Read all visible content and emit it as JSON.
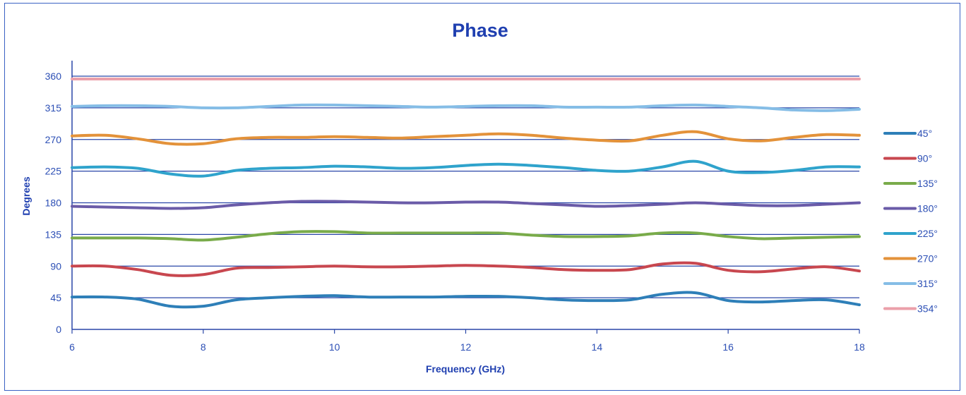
{
  "chart_data": {
    "type": "line",
    "title": "Phase",
    "xlabel": "Frequency (GHz)",
    "ylabel": "Degrees",
    "xlim": [
      6,
      18
    ],
    "ylim": [
      0,
      360
    ],
    "xticks": [
      6,
      8,
      10,
      12,
      14,
      16,
      18
    ],
    "yticks": [
      0,
      45,
      90,
      135,
      180,
      225,
      270,
      315,
      360
    ],
    "grid": "horizontal",
    "legend_position": "right",
    "x": [
      6,
      6.5,
      7,
      7.5,
      8,
      8.5,
      9,
      9.5,
      10,
      10.5,
      11,
      11.5,
      12,
      12.5,
      13,
      13.5,
      14,
      14.5,
      15,
      15.5,
      16,
      16.5,
      17,
      17.5,
      18
    ],
    "series": [
      {
        "name": "45°",
        "color": "#2e7fb8",
        "values": [
          46,
          46,
          43,
          33,
          33,
          42,
          45,
          47,
          48,
          46,
          46,
          46,
          47,
          47,
          45,
          42,
          41,
          42,
          50,
          52,
          41,
          39,
          41,
          42,
          35
        ]
      },
      {
        "name": "90°",
        "color": "#c8474f",
        "values": [
          90,
          90,
          85,
          77,
          78,
          87,
          88,
          89,
          90,
          89,
          89,
          90,
          91,
          90,
          88,
          85,
          84,
          85,
          93,
          94,
          84,
          82,
          86,
          89,
          83
        ]
      },
      {
        "name": "135°",
        "color": "#79ab4a",
        "values": [
          130,
          130,
          130,
          129,
          127,
          131,
          136,
          139,
          139,
          137,
          137,
          137,
          137,
          137,
          134,
          132,
          132,
          133,
          137,
          137,
          132,
          129,
          130,
          131,
          132
        ]
      },
      {
        "name": "180°",
        "color": "#6a5ba8",
        "values": [
          175,
          174,
          173,
          172,
          173,
          177,
          180,
          182,
          182,
          181,
          180,
          180,
          181,
          181,
          179,
          177,
          175,
          176,
          178,
          180,
          178,
          176,
          176,
          178,
          180
        ]
      },
      {
        "name": "225°",
        "color": "#2fa3cc",
        "values": [
          230,
          231,
          229,
          221,
          218,
          226,
          229,
          230,
          232,
          231,
          229,
          230,
          233,
          235,
          233,
          230,
          226,
          225,
          231,
          239,
          225,
          223,
          226,
          231,
          231
        ]
      },
      {
        "name": "270°",
        "color": "#e3923a",
        "values": [
          275,
          276,
          271,
          264,
          264,
          271,
          273,
          273,
          274,
          273,
          272,
          274,
          276,
          278,
          276,
          272,
          269,
          268,
          276,
          281,
          271,
          268,
          273,
          277,
          276
        ]
      },
      {
        "name": "315°",
        "color": "#85bde6",
        "values": [
          317,
          318,
          318,
          317,
          315,
          315,
          317,
          319,
          319,
          318,
          317,
          316,
          317,
          318,
          318,
          316,
          316,
          316,
          318,
          319,
          317,
          315,
          312,
          311,
          313
        ]
      },
      {
        "name": "354°",
        "color": "#eba0aa",
        "values": [
          356,
          356,
          356,
          356,
          356,
          356,
          356,
          356,
          356,
          356,
          356,
          356,
          356,
          356,
          356,
          356,
          356,
          356,
          356,
          356,
          356,
          356,
          356,
          356,
          356
        ]
      }
    ]
  }
}
